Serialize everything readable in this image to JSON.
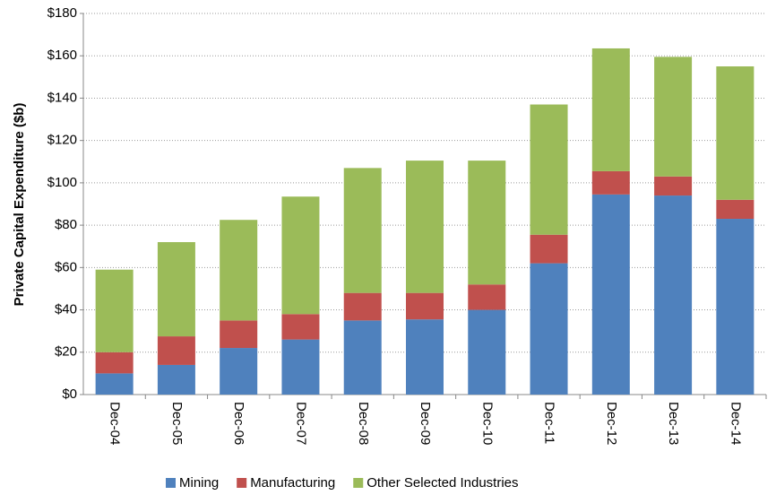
{
  "chart_data": {
    "type": "stacked_bar",
    "y_label": "Private Capital Expenditure ($b)",
    "categories": [
      "Dec-04",
      "Dec-05",
      "Dec-06",
      "Dec-07",
      "Dec-08",
      "Dec-09",
      "Dec-10",
      "Dec-11",
      "Dec-12",
      "Dec-13",
      "Dec-14"
    ],
    "series": [
      {
        "name": "Mining",
        "color": "#4f81bd",
        "values": [
          10,
          14,
          22,
          26,
          35,
          35.5,
          40,
          62,
          94.5,
          94,
          83
        ]
      },
      {
        "name": "Manufacturing",
        "color": "#c0504d",
        "values": [
          10,
          13.5,
          13,
          12,
          13,
          12.5,
          12,
          13.5,
          11,
          9,
          9
        ]
      },
      {
        "name": "Other Selected Industries",
        "color": "#9bbb59",
        "values": [
          39,
          44.5,
          47.5,
          55.5,
          59,
          62.5,
          58.5,
          61.5,
          58,
          56.5,
          63
        ]
      }
    ],
    "ylim": [
      0,
      180
    ],
    "yticks": [
      {
        "value": 0,
        "label": "$0"
      },
      {
        "value": 20,
        "label": "$20"
      },
      {
        "value": 40,
        "label": "$40"
      },
      {
        "value": 60,
        "label": "$60"
      },
      {
        "value": 80,
        "label": "$80"
      },
      {
        "value": 100,
        "label": "$100"
      },
      {
        "value": 120,
        "label": "$120"
      },
      {
        "value": 140,
        "label": "$140"
      },
      {
        "value": 160,
        "label": "$160"
      },
      {
        "value": 180,
        "label": "$180"
      }
    ],
    "grid": true,
    "legend": "bottom"
  }
}
